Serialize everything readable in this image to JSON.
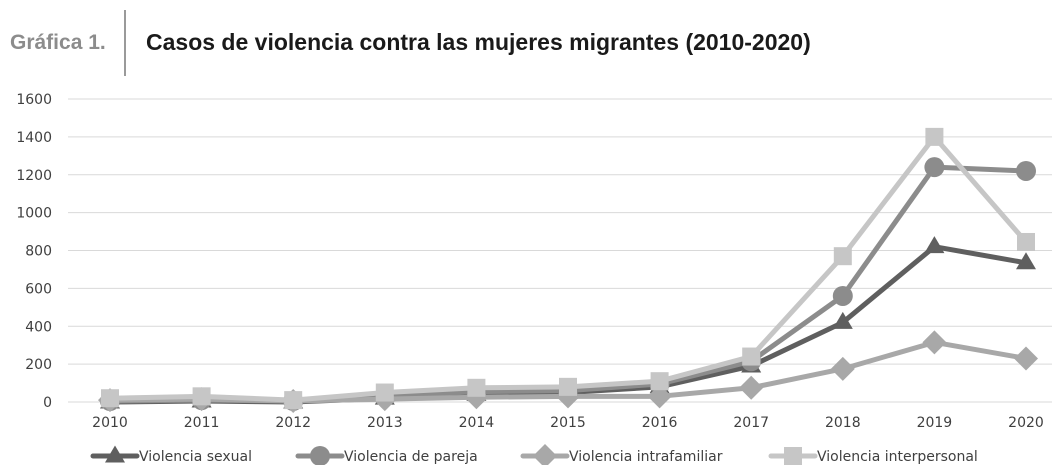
{
  "header": {
    "label": "Gráfica 1.",
    "title": "Casos de violencia contra las mujeres migrantes (2010-2020)"
  },
  "chart_data": {
    "type": "line",
    "title": "Casos de violencia contra las mujeres migrantes (2010-2020)",
    "xlabel": "",
    "ylabel": "",
    "x": [
      "2010",
      "2011",
      "2012",
      "2013",
      "2014",
      "2015",
      "2016",
      "2017",
      "2018",
      "2019",
      "2020"
    ],
    "ylim": [
      0,
      1600
    ],
    "yticks": [
      0,
      200,
      400,
      600,
      800,
      1000,
      1200,
      1400,
      1600
    ],
    "grid": true,
    "legend_position": "bottom",
    "series": [
      {
        "name": "Violencia sexual",
        "marker": "triangle",
        "color": "#5f5f5f",
        "values": [
          0,
          5,
          0,
          20,
          40,
          50,
          80,
          190,
          420,
          820,
          735
        ]
      },
      {
        "name": "Violencia de pareja",
        "marker": "circle",
        "color": "#8c8c8c",
        "values": [
          5,
          10,
          5,
          30,
          55,
          60,
          95,
          215,
          560,
          1240,
          1220
        ]
      },
      {
        "name": "Violencia intrafamiliar",
        "marker": "diamond",
        "color": "#a8a8a8",
        "values": [
          10,
          15,
          5,
          15,
          25,
          30,
          30,
          75,
          175,
          315,
          230
        ]
      },
      {
        "name": "Violencia interpersonal",
        "marker": "square",
        "color": "#c6c6c6",
        "values": [
          20,
          30,
          10,
          50,
          75,
          80,
          110,
          240,
          770,
          1400,
          845
        ]
      }
    ]
  }
}
